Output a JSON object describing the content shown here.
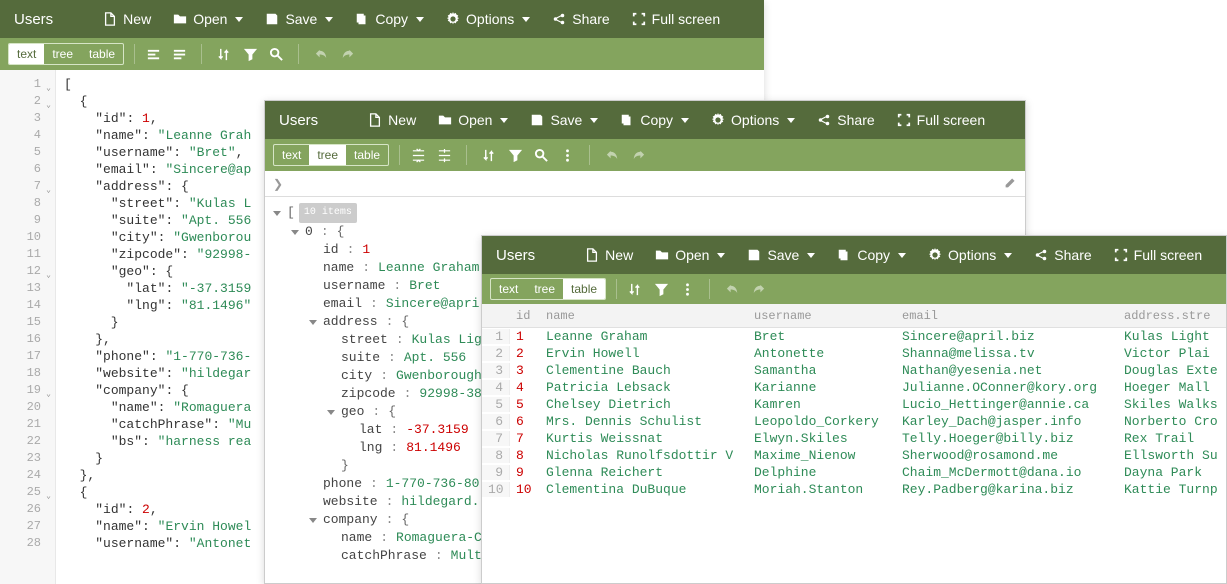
{
  "title": "Users",
  "menu": {
    "new": "New",
    "open": "Open",
    "save": "Save",
    "copy": "Copy",
    "options": "Options",
    "share": "Share",
    "fullscreen": "Full screen"
  },
  "modes": {
    "text": "text",
    "tree": "tree",
    "table": "table"
  },
  "json_lines": [
    {
      "n": 1,
      "f": true,
      "t": "["
    },
    {
      "n": 2,
      "f": true,
      "t": "  {"
    },
    {
      "n": 3,
      "t": "    \"id\": 1,",
      "seg": [
        [
          "j-p",
          "    "
        ],
        [
          "j-k",
          "\"id\""
        ],
        [
          "j-p",
          ": "
        ],
        [
          "j-n",
          "1"
        ],
        [
          "j-p",
          ","
        ]
      ]
    },
    {
      "n": 4,
      "t": "    \"name\": \"Leanne Grah",
      "seg": [
        [
          "j-p",
          "    "
        ],
        [
          "j-k",
          "\"name\""
        ],
        [
          "j-p",
          ": "
        ],
        [
          "j-s",
          "\"Leanne Grah"
        ]
      ]
    },
    {
      "n": 5,
      "t": "    \"username\": \"Bret\",",
      "seg": [
        [
          "j-p",
          "    "
        ],
        [
          "j-k",
          "\"username\""
        ],
        [
          "j-p",
          ": "
        ],
        [
          "j-s",
          "\"Bret\""
        ],
        [
          "j-p",
          ","
        ]
      ]
    },
    {
      "n": 6,
      "t": "    \"email\": \"Sincere@ap",
      "seg": [
        [
          "j-p",
          "    "
        ],
        [
          "j-k",
          "\"email\""
        ],
        [
          "j-p",
          ": "
        ],
        [
          "j-s",
          "\"Sincere@ap"
        ]
      ]
    },
    {
      "n": 7,
      "f": true,
      "t": "    \"address\": {",
      "seg": [
        [
          "j-p",
          "    "
        ],
        [
          "j-k",
          "\"address\""
        ],
        [
          "j-p",
          ": {"
        ]
      ]
    },
    {
      "n": 8,
      "t": "      \"street\": \"Kulas L",
      "seg": [
        [
          "j-p",
          "      "
        ],
        [
          "j-k",
          "\"street\""
        ],
        [
          "j-p",
          ": "
        ],
        [
          "j-s",
          "\"Kulas L"
        ]
      ]
    },
    {
      "n": 9,
      "t": "      \"suite\": \"Apt. 556",
      "seg": [
        [
          "j-p",
          "      "
        ],
        [
          "j-k",
          "\"suite\""
        ],
        [
          "j-p",
          ": "
        ],
        [
          "j-s",
          "\"Apt. 556"
        ]
      ]
    },
    {
      "n": 10,
      "t": "      \"city\": \"Gwenborou",
      "seg": [
        [
          "j-p",
          "      "
        ],
        [
          "j-k",
          "\"city\""
        ],
        [
          "j-p",
          ": "
        ],
        [
          "j-s",
          "\"Gwenborou"
        ]
      ]
    },
    {
      "n": 11,
      "t": "      \"zipcode\": \"92998-",
      "seg": [
        [
          "j-p",
          "      "
        ],
        [
          "j-k",
          "\"zipcode\""
        ],
        [
          "j-p",
          ": "
        ],
        [
          "j-s",
          "\"92998-"
        ]
      ]
    },
    {
      "n": 12,
      "f": true,
      "t": "      \"geo\": {",
      "seg": [
        [
          "j-p",
          "      "
        ],
        [
          "j-k",
          "\"geo\""
        ],
        [
          "j-p",
          ": {"
        ]
      ]
    },
    {
      "n": 13,
      "t": "        \"lat\": \"-37.3159",
      "seg": [
        [
          "j-p",
          "        "
        ],
        [
          "j-k",
          "\"lat\""
        ],
        [
          "j-p",
          ": "
        ],
        [
          "j-s",
          "\"-37.3159"
        ]
      ]
    },
    {
      "n": 14,
      "t": "        \"lng\": \"81.1496\"",
      "seg": [
        [
          "j-p",
          "        "
        ],
        [
          "j-k",
          "\"lng\""
        ],
        [
          "j-p",
          ": "
        ],
        [
          "j-s",
          "\"81.1496\""
        ]
      ]
    },
    {
      "n": 15,
      "t": "      }",
      "seg": [
        [
          "j-p",
          "      }"
        ]
      ]
    },
    {
      "n": 16,
      "t": "    },",
      "seg": [
        [
          "j-p",
          "    },"
        ]
      ]
    },
    {
      "n": 17,
      "t": "    \"phone\": \"1-770-736-",
      "seg": [
        [
          "j-p",
          "    "
        ],
        [
          "j-k",
          "\"phone\""
        ],
        [
          "j-p",
          ": "
        ],
        [
          "j-s",
          "\"1-770-736-"
        ]
      ]
    },
    {
      "n": 18,
      "t": "    \"website\": \"hildegar",
      "seg": [
        [
          "j-p",
          "    "
        ],
        [
          "j-k",
          "\"website\""
        ],
        [
          "j-p",
          ": "
        ],
        [
          "j-s",
          "\"hildegar"
        ]
      ]
    },
    {
      "n": 19,
      "f": true,
      "t": "    \"company\": {",
      "seg": [
        [
          "j-p",
          "    "
        ],
        [
          "j-k",
          "\"company\""
        ],
        [
          "j-p",
          ": {"
        ]
      ]
    },
    {
      "n": 20,
      "t": "      \"name\": \"Romaguera",
      "seg": [
        [
          "j-p",
          "      "
        ],
        [
          "j-k",
          "\"name\""
        ],
        [
          "j-p",
          ": "
        ],
        [
          "j-s",
          "\"Romaguera"
        ]
      ]
    },
    {
      "n": 21,
      "t": "      \"catchPhrase\": \"Mu",
      "seg": [
        [
          "j-p",
          "      "
        ],
        [
          "j-k",
          "\"catchPhrase\""
        ],
        [
          "j-p",
          ": "
        ],
        [
          "j-s",
          "\"Mu"
        ]
      ]
    },
    {
      "n": 22,
      "t": "      \"bs\": \"harness rea",
      "seg": [
        [
          "j-p",
          "      "
        ],
        [
          "j-k",
          "\"bs\""
        ],
        [
          "j-p",
          ": "
        ],
        [
          "j-s",
          "\"harness rea"
        ]
      ]
    },
    {
      "n": 23,
      "t": "    }",
      "seg": [
        [
          "j-p",
          "    }"
        ]
      ]
    },
    {
      "n": 24,
      "t": "  },",
      "seg": [
        [
          "j-p",
          "  },"
        ]
      ]
    },
    {
      "n": 25,
      "f": true,
      "t": "  {",
      "seg": [
        [
          "j-p",
          "  {"
        ]
      ]
    },
    {
      "n": 26,
      "t": "    \"id\": 2,",
      "seg": [
        [
          "j-p",
          "    "
        ],
        [
          "j-k",
          "\"id\""
        ],
        [
          "j-p",
          ": "
        ],
        [
          "j-n",
          "2"
        ],
        [
          "j-p",
          ","
        ]
      ]
    },
    {
      "n": 27,
      "t": "    \"name\": \"Ervin Howel",
      "seg": [
        [
          "j-p",
          "    "
        ],
        [
          "j-k",
          "\"name\""
        ],
        [
          "j-p",
          ": "
        ],
        [
          "j-s",
          "\"Ervin Howel"
        ]
      ]
    },
    {
      "n": 28,
      "t": "    \"username\": \"Antonet",
      "seg": [
        [
          "j-p",
          "    "
        ],
        [
          "j-k",
          "\"username\""
        ],
        [
          "j-p",
          ": "
        ],
        [
          "j-s",
          "\"Antonet"
        ]
      ]
    }
  ],
  "tree_count": "10 items",
  "tree_nodes": [
    {
      "ind": 0,
      "arr": "d",
      "key": "",
      "val": "[",
      "cls": "tbracket",
      "count": true
    },
    {
      "ind": 1,
      "arr": "d",
      "key": "0",
      "colon": true,
      "val": "{",
      "cls": "tbracket"
    },
    {
      "ind": 2,
      "key": "id",
      "colon": true,
      "val": "1",
      "cls": "t-n"
    },
    {
      "ind": 2,
      "key": "name",
      "colon": true,
      "val": "Leanne Graham",
      "cls": "t-s"
    },
    {
      "ind": 2,
      "key": "username",
      "colon": true,
      "val": "Bret",
      "cls": "t-s"
    },
    {
      "ind": 2,
      "key": "email",
      "colon": true,
      "val": "Sincere@apri",
      "cls": "t-s"
    },
    {
      "ind": 2,
      "arr": "d",
      "key": "address",
      "colon": true,
      "val": "{",
      "cls": "tbracket"
    },
    {
      "ind": 3,
      "key": "street",
      "colon": true,
      "val": "Kulas Lig",
      "cls": "t-s"
    },
    {
      "ind": 3,
      "key": "suite",
      "colon": true,
      "val": "Apt. 556",
      "cls": "t-s"
    },
    {
      "ind": 3,
      "key": "city",
      "colon": true,
      "val": "Gwenborough",
      "cls": "t-s"
    },
    {
      "ind": 3,
      "key": "zipcode",
      "colon": true,
      "val": "92998-38",
      "cls": "t-s"
    },
    {
      "ind": 3,
      "arr": "d",
      "key": "geo",
      "colon": true,
      "val": "{",
      "cls": "tbracket"
    },
    {
      "ind": 4,
      "key": "lat",
      "colon": true,
      "val": "-37.3159",
      "cls": "t-n"
    },
    {
      "ind": 4,
      "key": "lng",
      "colon": true,
      "val": "81.1496",
      "cls": "t-n"
    },
    {
      "ind": 3,
      "key": "",
      "val": "}",
      "cls": "tbracket"
    },
    {
      "ind": 2,
      "key": "phone",
      "colon": true,
      "val": "1-770-736-80",
      "cls": "t-s"
    },
    {
      "ind": 2,
      "key": "website",
      "colon": true,
      "val": "hildegard.",
      "cls": "t-s"
    },
    {
      "ind": 2,
      "arr": "d",
      "key": "company",
      "colon": true,
      "val": "{",
      "cls": "tbracket"
    },
    {
      "ind": 3,
      "key": "name",
      "colon": true,
      "val": "Romaguera-C",
      "cls": "t-s"
    },
    {
      "ind": 3,
      "key": "catchPhrase",
      "colon": true,
      "val": "Mult",
      "cls": "t-s"
    }
  ],
  "table": {
    "headers": {
      "id": "id",
      "name": "name",
      "username": "username",
      "email": "email",
      "addr": "address.stre"
    },
    "rows": [
      {
        "i": 1,
        "id": "1",
        "name": "Leanne Graham",
        "username": "Bret",
        "email": "Sincere@april.biz",
        "addr": "Kulas Light"
      },
      {
        "i": 2,
        "id": "2",
        "name": "Ervin Howell",
        "username": "Antonette",
        "email": "Shanna@melissa.tv",
        "addr": "Victor Plai"
      },
      {
        "i": 3,
        "id": "3",
        "name": "Clementine Bauch",
        "username": "Samantha",
        "email": "Nathan@yesenia.net",
        "addr": "Douglas Exte"
      },
      {
        "i": 4,
        "id": "4",
        "name": "Patricia Lebsack",
        "username": "Karianne",
        "email": "Julianne.OConner@kory.org",
        "addr": "Hoeger Mall"
      },
      {
        "i": 5,
        "id": "5",
        "name": "Chelsey Dietrich",
        "username": "Kamren",
        "email": "Lucio_Hettinger@annie.ca",
        "addr": "Skiles Walks"
      },
      {
        "i": 6,
        "id": "6",
        "name": "Mrs. Dennis Schulist",
        "username": "Leopoldo_Corkery",
        "email": "Karley_Dach@jasper.info",
        "addr": "Norberto Cro"
      },
      {
        "i": 7,
        "id": "7",
        "name": "Kurtis Weissnat",
        "username": "Elwyn.Skiles",
        "email": "Telly.Hoeger@billy.biz",
        "addr": "Rex Trail"
      },
      {
        "i": 8,
        "id": "8",
        "name": "Nicholas Runolfsdottir V",
        "username": "Maxime_Nienow",
        "email": "Sherwood@rosamond.me",
        "addr": "Ellsworth Su"
      },
      {
        "i": 9,
        "id": "9",
        "name": "Glenna Reichert",
        "username": "Delphine",
        "email": "Chaim_McDermott@dana.io",
        "addr": "Dayna Park"
      },
      {
        "i": 10,
        "id": "10",
        "name": "Clementina DuBuque",
        "username": "Moriah.Stanton",
        "email": "Rey.Padberg@karina.biz",
        "addr": "Kattie Turnp"
      }
    ]
  }
}
